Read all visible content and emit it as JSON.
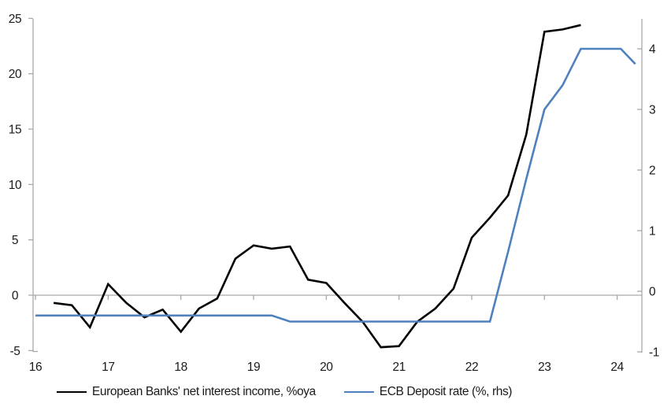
{
  "chart_data": {
    "type": "line",
    "title": "",
    "x_axis": {
      "ticks": [
        16,
        17,
        18,
        19,
        20,
        21,
        22,
        23,
        24
      ],
      "min": 16,
      "max": 24.34
    },
    "left_axis": {
      "ticks": [
        25,
        20,
        15,
        10,
        5,
        0,
        -5
      ],
      "min": -5,
      "max": 25,
      "zero_line": true
    },
    "right_axis": {
      "ticks": [
        4,
        3,
        2,
        1,
        0,
        -1
      ],
      "min": -1,
      "max": 4.5
    },
    "grid": "zero-line-only",
    "legend_position": "bottom-center",
    "series": [
      {
        "name": "European Banks' net interest income, %oya",
        "axis": "left",
        "color": "#000000",
        "x": [
          16.25,
          16.5,
          16.75,
          17.0,
          17.25,
          17.5,
          17.75,
          18.0,
          18.25,
          18.5,
          18.75,
          19.0,
          19.25,
          19.5,
          19.75,
          20.0,
          20.25,
          20.5,
          20.75,
          21.0,
          21.25,
          21.5,
          21.75,
          22.0,
          22.25,
          22.5,
          22.75,
          23.0,
          23.25,
          23.5
        ],
        "values": [
          -0.7,
          -0.9,
          -2.9,
          1.0,
          -0.7,
          -2.0,
          -1.3,
          -3.3,
          -1.2,
          -0.3,
          3.3,
          4.5,
          4.2,
          4.4,
          1.4,
          1.1,
          -0.7,
          -2.4,
          -4.7,
          -4.6,
          -2.4,
          -1.2,
          0.6,
          5.2,
          7.0,
          9.0,
          14.5,
          23.8,
          24.0,
          24.4
        ]
      },
      {
        "name": "ECB Deposit rate (%, rhs)",
        "axis": "right",
        "color": "#4E81BD",
        "x": [
          16.0,
          19.25,
          19.5,
          22.25,
          22.5,
          22.75,
          23.0,
          23.25,
          23.5,
          24.05,
          24.25
        ],
        "values": [
          -0.4,
          -0.4,
          -0.5,
          -0.5,
          0.65,
          1.85,
          3.0,
          3.4,
          4.0,
          4.0,
          3.75
        ]
      }
    ]
  },
  "colors": {
    "axis": "#A9A9A9",
    "zero_line": "#A9A9A9",
    "background": "#FFFFFF",
    "text": "#1A1A1A"
  }
}
